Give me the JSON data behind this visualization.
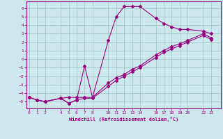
{
  "xlabel": "Windchill (Refroidissement éolien,°C)",
  "background_color": "#cce8ec",
  "grid_color": "#a0c8cc",
  "line_color": "#990080",
  "xticks": [
    0,
    1,
    2,
    4,
    5,
    6,
    7,
    8,
    10,
    11,
    12,
    13,
    14,
    16,
    17,
    18,
    19,
    20,
    22,
    23
  ],
  "yticks": [
    -5,
    -4,
    -3,
    -2,
    -1,
    0,
    1,
    2,
    3,
    4,
    5,
    6
  ],
  "ylim": [
    -5.8,
    6.8
  ],
  "xlim": [
    -0.3,
    24.2
  ],
  "series1_x": [
    0,
    1,
    2,
    4,
    5,
    6,
    7,
    8,
    10,
    11,
    12,
    13,
    14,
    16,
    17,
    18,
    19,
    20,
    22,
    23
  ],
  "series1_y": [
    -4.5,
    -4.8,
    -5.0,
    -4.6,
    -4.5,
    -4.5,
    -4.5,
    -4.5,
    2.2,
    5.0,
    6.2,
    6.2,
    6.2,
    4.8,
    4.2,
    3.8,
    3.5,
    3.5,
    3.3,
    3.0
  ],
  "series2_x": [
    0,
    1,
    2,
    4,
    5,
    6,
    7,
    8,
    10,
    11,
    12,
    13,
    14,
    16,
    17,
    18,
    19,
    20,
    22,
    23
  ],
  "series2_y": [
    -4.5,
    -4.8,
    -5.0,
    -4.6,
    -5.2,
    -4.8,
    -4.6,
    -4.6,
    -3.2,
    -2.5,
    -2.0,
    -1.5,
    -1.0,
    0.2,
    0.8,
    1.2,
    1.6,
    2.0,
    2.8,
    2.3
  ],
  "series3_x": [
    0,
    1,
    2,
    4,
    5,
    6,
    7,
    8,
    10,
    11,
    12,
    13,
    14,
    16,
    17,
    18,
    19,
    20,
    22,
    23
  ],
  "series3_y": [
    -4.5,
    -4.8,
    -5.0,
    -4.6,
    -5.2,
    -4.8,
    -0.8,
    -4.5,
    -2.8,
    -2.2,
    -1.8,
    -1.2,
    -0.8,
    0.5,
    1.0,
    1.5,
    1.8,
    2.2,
    3.0,
    2.5
  ]
}
